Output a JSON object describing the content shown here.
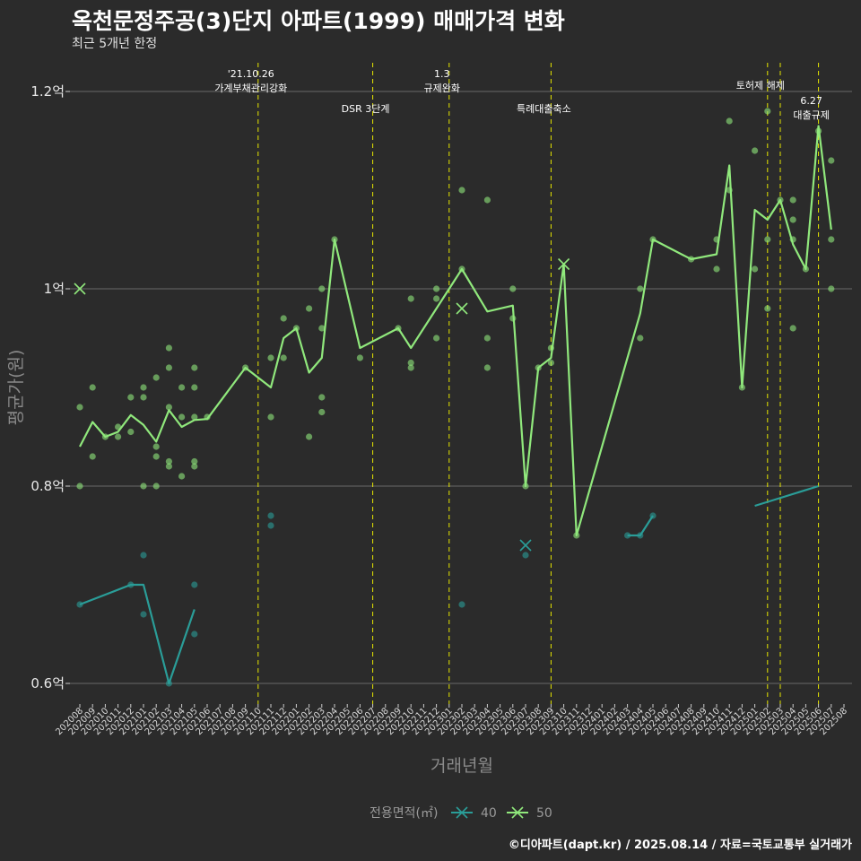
{
  "title": "옥천문정주공(3)단지 아파트(1999) 매매가격 변화",
  "subtitle": "최근 5개년 한정",
  "caption": "©디아파트(dapt.kr) / 2025.08.14 / 자료=국토교통부 실거래가",
  "colors": {
    "background": "#2b2b2b",
    "grid": "#6a6a6a",
    "event_line": "#e6e600",
    "series_40": "#2a9d98",
    "series_50": "#90e87c"
  },
  "chart_data": {
    "type": "line",
    "xlabel": "거래년월",
    "ylabel": "평균가(원)",
    "ylim": [
      0.575,
      1.235
    ],
    "y_ticks": [
      {
        "value": 0.6,
        "label": "0.6억"
      },
      {
        "value": 0.8,
        "label": "0.8억"
      },
      {
        "value": 1.0,
        "label": "1억"
      },
      {
        "value": 1.2,
        "label": "1.2억"
      }
    ],
    "x_categories": [
      "202008",
      "202009",
      "202010",
      "202011",
      "202012",
      "202101",
      "202102",
      "202103",
      "202104",
      "202105",
      "202106",
      "202107",
      "202108",
      "202109",
      "202110",
      "202111",
      "202112",
      "202201",
      "202202",
      "202203",
      "202204",
      "202205",
      "202206",
      "202207",
      "202208",
      "202209",
      "202210",
      "202211",
      "202212",
      "202301",
      "202302",
      "202303",
      "202304",
      "202305",
      "202306",
      "202307",
      "202308",
      "202309",
      "202310",
      "202311",
      "202312",
      "202401",
      "202402",
      "202403",
      "202404",
      "202405",
      "202406",
      "202407",
      "202408",
      "202409",
      "202410",
      "202411",
      "202412",
      "202501",
      "202502",
      "202503",
      "202504",
      "202505",
      "202506",
      "202507",
      "202508"
    ],
    "legend": {
      "title": "전용면적(㎡)",
      "entries": [
        "40",
        "50"
      ],
      "position": "bottom"
    },
    "events": [
      {
        "x": "202110",
        "label": [
          "'21.10.26",
          "가계부채관리강화"
        ],
        "level": 0
      },
      {
        "x": "202207",
        "label": [
          "DSR 3단계"
        ],
        "level": 1
      },
      {
        "x": "202301",
        "label": [
          "1.3",
          "규제완화"
        ],
        "level": 0
      },
      {
        "x": "202309",
        "label": [
          "특례대출축소"
        ],
        "level": 1
      },
      {
        "x": "202502",
        "label": [
          "토허제 해제"
        ],
        "level": 2
      },
      {
        "x": "202503",
        "label": [],
        "level": 2
      },
      {
        "x": "202506",
        "label": [
          "6.27",
          "대출규제"
        ],
        "level": 3
      }
    ],
    "series": [
      {
        "name": "40",
        "color": "#2a9d98",
        "line_segments": [
          [
            [
              "202008",
              0.68
            ],
            [
              "202012",
              0.7
            ],
            [
              "202101",
              0.7
            ],
            [
              "202103",
              0.6
            ],
            [
              "202105",
              0.675
            ]
          ],
          [
            [
              "202403",
              0.75
            ],
            [
              "202404",
              0.75
            ],
            [
              "202405",
              0.77
            ]
          ],
          [
            [
              "202501",
              0.78
            ],
            [
              "202506",
              0.8
            ]
          ]
        ],
        "points": [
          [
            "202008",
            0.68
          ],
          [
            "202012",
            0.7
          ],
          [
            "202101",
            0.73
          ],
          [
            "202101",
            0.67
          ],
          [
            "202103",
            0.6
          ],
          [
            "202105",
            0.7
          ],
          [
            "202105",
            0.65
          ],
          [
            "202111",
            0.77
          ],
          [
            "202111",
            0.76
          ],
          [
            "202302",
            0.68
          ],
          [
            "202307",
            0.73
          ],
          [
            "202403",
            0.75
          ],
          [
            "202404",
            0.75
          ],
          [
            "202405",
            0.77
          ]
        ],
        "x_markers": [
          [
            "202307",
            0.74
          ]
        ]
      },
      {
        "name": "50",
        "color": "#90e87c",
        "line_segments": [
          [
            [
              "202008",
              0.84
            ],
            [
              "202009",
              0.865
            ],
            [
              "202010",
              0.85
            ],
            [
              "202011",
              0.855
            ],
            [
              "202012",
              0.872
            ],
            [
              "202101",
              0.862
            ],
            [
              "202102",
              0.845
            ],
            [
              "202103",
              0.877
            ],
            [
              "202104",
              0.86
            ],
            [
              "202105",
              0.867
            ],
            [
              "202106",
              0.868
            ],
            [
              "202109",
              0.92
            ],
            [
              "202111",
              0.9
            ],
            [
              "202112",
              0.95
            ],
            [
              "202201",
              0.96
            ],
            [
              "202202",
              0.915
            ],
            [
              "202203",
              0.93
            ],
            [
              "202204",
              1.05
            ],
            [
              "202206",
              0.94
            ],
            [
              "202209",
              0.96
            ],
            [
              "202210",
              0.94
            ],
            [
              "202302",
              1.02
            ],
            [
              "202304",
              0.977
            ],
            [
              "202306",
              0.983
            ],
            [
              "202307",
              0.8
            ],
            [
              "202308",
              0.92
            ],
            [
              "202309",
              0.93
            ],
            [
              "202310",
              1.025
            ],
            [
              "202311",
              0.75
            ],
            [
              "202404",
              0.975
            ],
            [
              "202405",
              1.05
            ],
            [
              "202408",
              1.03
            ],
            [
              "202410",
              1.035
            ],
            [
              "202411",
              1.125
            ],
            [
              "202412",
              0.9
            ],
            [
              "202501",
              1.08
            ],
            [
              "202502",
              1.07
            ],
            [
              "202503",
              1.09
            ],
            [
              "202504",
              1.045
            ],
            [
              "202505",
              1.02
            ],
            [
              "202506",
              1.165
            ],
            [
              "202507",
              1.06
            ]
          ]
        ],
        "points": [
          [
            "202008",
            0.88
          ],
          [
            "202008",
            0.8
          ],
          [
            "202009",
            0.9
          ],
          [
            "202009",
            0.83
          ],
          [
            "202010",
            0.85
          ],
          [
            "202011",
            0.86
          ],
          [
            "202011",
            0.85
          ],
          [
            "202012",
            0.89
          ],
          [
            "202012",
            0.855
          ],
          [
            "202101",
            0.9
          ],
          [
            "202101",
            0.89
          ],
          [
            "202101",
            0.8
          ],
          [
            "202102",
            0.91
          ],
          [
            "202102",
            0.84
          ],
          [
            "202102",
            0.83
          ],
          [
            "202102",
            0.8
          ],
          [
            "202103",
            0.94
          ],
          [
            "202103",
            0.92
          ],
          [
            "202103",
            0.88
          ],
          [
            "202103",
            0.825
          ],
          [
            "202103",
            0.82
          ],
          [
            "202104",
            0.9
          ],
          [
            "202104",
            0.87
          ],
          [
            "202104",
            0.81
          ],
          [
            "202105",
            0.92
          ],
          [
            "202105",
            0.9
          ],
          [
            "202105",
            0.87
          ],
          [
            "202105",
            0.825
          ],
          [
            "202105",
            0.82
          ],
          [
            "202106",
            0.87
          ],
          [
            "202109",
            0.92
          ],
          [
            "202111",
            0.93
          ],
          [
            "202111",
            0.87
          ],
          [
            "202112",
            0.97
          ],
          [
            "202112",
            0.93
          ],
          [
            "202201",
            0.96
          ],
          [
            "202202",
            0.98
          ],
          [
            "202202",
            0.85
          ],
          [
            "202203",
            1.0
          ],
          [
            "202203",
            0.96
          ],
          [
            "202203",
            0.89
          ],
          [
            "202203",
            0.875
          ],
          [
            "202204",
            1.05
          ],
          [
            "202206",
            0.93
          ],
          [
            "202209",
            0.96
          ],
          [
            "202210",
            0.99
          ],
          [
            "202210",
            0.925
          ],
          [
            "202210",
            0.92
          ],
          [
            "202212",
            1.0
          ],
          [
            "202212",
            0.99
          ],
          [
            "202212",
            0.95
          ],
          [
            "202302",
            1.1
          ],
          [
            "202302",
            1.02
          ],
          [
            "202304",
            1.09
          ],
          [
            "202304",
            0.95
          ],
          [
            "202304",
            0.92
          ],
          [
            "202306",
            1.0
          ],
          [
            "202306",
            0.97
          ],
          [
            "202307",
            0.8
          ],
          [
            "202308",
            0.92
          ],
          [
            "202309",
            0.94
          ],
          [
            "202309",
            0.925
          ],
          [
            "202311",
            0.75
          ],
          [
            "202404",
            1.0
          ],
          [
            "202404",
            0.95
          ],
          [
            "202405",
            1.05
          ],
          [
            "202408",
            1.03
          ],
          [
            "202410",
            1.05
          ],
          [
            "202410",
            1.02
          ],
          [
            "202411",
            1.17
          ],
          [
            "202411",
            1.1
          ],
          [
            "202412",
            0.9
          ],
          [
            "202501",
            1.14
          ],
          [
            "202501",
            1.02
          ],
          [
            "202502",
            1.18
          ],
          [
            "202502",
            1.05
          ],
          [
            "202502",
            0.98
          ],
          [
            "202503",
            1.09
          ],
          [
            "202504",
            1.09
          ],
          [
            "202504",
            1.07
          ],
          [
            "202504",
            1.05
          ],
          [
            "202504",
            0.96
          ],
          [
            "202505",
            1.02
          ],
          [
            "202506",
            1.16
          ],
          [
            "202507",
            1.13
          ],
          [
            "202507",
            1.05
          ],
          [
            "202507",
            1.0
          ]
        ],
        "x_markers": [
          [
            "202008",
            1.0
          ],
          [
            "202302",
            0.98
          ],
          [
            "202310",
            1.025
          ]
        ]
      }
    ]
  }
}
